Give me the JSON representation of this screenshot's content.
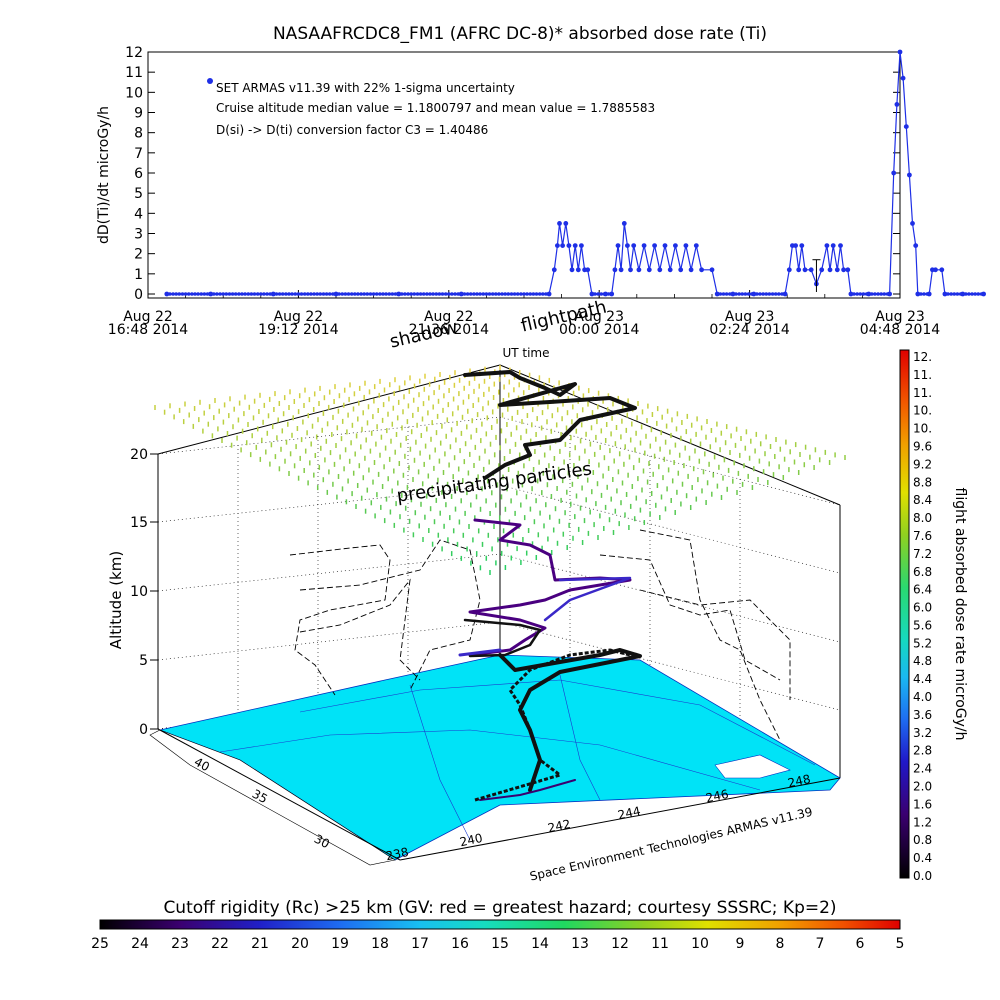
{
  "top_chart": {
    "title": "NASAAFRCDC8_FM1 (AFRC DC-8)* absorbed dose rate (Ti)",
    "ylabel": "dD(Ti)/dt microGy/h",
    "xlabel": "UT time",
    "notes": [
      "SET ARMAS v11.39 with 22% 1-sigma uncertainty",
      "Cruise altitude median value = 1.1800797 and mean value = 1.7885583",
      "D(si) -> D(ti) conversion factor C3 = 1.40486"
    ],
    "x_ticks": [
      {
        "l1": "Aug 22",
        "l2": "16:48 2014"
      },
      {
        "l1": "Aug 22",
        "l2": "19:12 2014"
      },
      {
        "l1": "Aug 22",
        "l2": "21:36 2014"
      },
      {
        "l1": "Aug 23",
        "l2": "00:00 2014"
      },
      {
        "l1": "Aug 23",
        "l2": "02:24 2014"
      },
      {
        "l1": "Aug 23",
        "l2": "04:48 2014"
      }
    ],
    "y_ticks": [
      "0",
      "1",
      "2",
      "3",
      "4",
      "5",
      "6",
      "7",
      "8",
      "9",
      "10",
      "11",
      "12"
    ],
    "point_color": "#1e2fe6"
  },
  "chart_data": {
    "type": "line",
    "title": "NASAAFRCDC8_FM1 (AFRC DC-8)* absorbed dose rate (Ti)",
    "xlabel": "UT time",
    "ylabel": "dD(Ti)/dt microGy/h",
    "xlim": [
      "Aug 22 16:48 2014",
      "Aug 23 04:48 2014"
    ],
    "ylim": [
      0,
      12
    ],
    "x_units": "minutes after Aug 22 16:48 2014",
    "series": [
      {
        "name": "SET ARMAS v11.39 with 22% 1-sigma uncertainty",
        "points": [
          [
            18,
            0
          ],
          [
            60,
            0
          ],
          [
            120,
            0
          ],
          [
            180,
            0
          ],
          [
            240,
            0
          ],
          [
            300,
            0
          ],
          [
            384,
            0
          ],
          [
            389,
            1.2
          ],
          [
            392,
            2.4
          ],
          [
            394,
            3.5
          ],
          [
            397,
            2.4
          ],
          [
            400,
            3.5
          ],
          [
            403,
            2.4
          ],
          [
            406,
            1.2
          ],
          [
            409,
            2.4
          ],
          [
            412,
            1.2
          ],
          [
            415,
            2.4
          ],
          [
            418,
            1.2
          ],
          [
            421,
            1.2
          ],
          [
            425,
            0
          ],
          [
            438,
            0
          ],
          [
            444,
            0
          ],
          [
            447,
            1.2
          ],
          [
            450,
            2.4
          ],
          [
            453,
            1.2
          ],
          [
            456,
            3.5
          ],
          [
            459,
            2.4
          ],
          [
            462,
            1.2
          ],
          [
            465,
            2.4
          ],
          [
            470,
            1.2
          ],
          [
            475,
            2.4
          ],
          [
            480,
            1.2
          ],
          [
            485,
            2.4
          ],
          [
            490,
            1.2
          ],
          [
            495,
            2.4
          ],
          [
            500,
            1.2
          ],
          [
            505,
            2.4
          ],
          [
            510,
            1.2
          ],
          [
            515,
            2.4
          ],
          [
            520,
            1.2
          ],
          [
            525,
            2.4
          ],
          [
            530,
            1.2
          ],
          [
            540,
            1.2
          ],
          [
            545,
            0
          ],
          [
            560,
            0
          ],
          [
            580,
            0
          ],
          [
            610,
            0
          ],
          [
            614,
            1.2
          ],
          [
            617,
            2.4
          ],
          [
            620,
            2.4
          ],
          [
            623,
            1.2
          ],
          [
            626,
            2.4
          ],
          [
            629,
            1.2
          ],
          [
            635,
            1.2
          ],
          [
            640,
            0.5
          ],
          [
            645,
            1.2
          ],
          [
            650,
            2.4
          ],
          [
            653,
            1.2
          ],
          [
            656,
            2.4
          ],
          [
            660,
            1.2
          ],
          [
            663,
            2.4
          ],
          [
            666,
            1.2
          ],
          [
            670,
            1.2
          ],
          [
            673,
            0
          ],
          [
            690,
            0
          ],
          [
            710,
            0
          ],
          [
            714,
            6.0
          ],
          [
            717,
            9.4
          ],
          [
            720,
            12.0
          ],
          [
            723,
            10.7
          ],
          [
            726,
            8.3
          ],
          [
            729,
            5.9
          ],
          [
            732,
            3.5
          ],
          [
            735,
            2.4
          ],
          [
            737,
            0
          ],
          [
            748,
            0
          ],
          [
            751,
            1.2
          ],
          [
            754,
            1.2
          ],
          [
            760,
            1.2
          ],
          [
            763,
            0
          ],
          [
            780,
            0
          ],
          [
            800,
            0
          ]
        ]
      }
    ]
  },
  "lower_chart": {
    "ylabel": "Altitude (km)",
    "z_ticks": [
      "0",
      "5",
      "10",
      "15",
      "20"
    ],
    "lat_ticks": [
      "40",
      "35",
      "30"
    ],
    "lon_ticks": [
      "238",
      "240",
      "242",
      "244",
      "246",
      "248"
    ],
    "label_flightpath": "flightpath",
    "label_shadow": "shadow",
    "label_particles": "precipitating particles",
    "credit": "Space Environment Technologies ARMAS v11.39",
    "land_color": "#00e3f7",
    "path_color": "#111111"
  },
  "dose_colorbar": {
    "label": "flight absorbed dose rate microGy/h",
    "ticks": [
      "12.",
      "11.",
      "11.",
      "10.",
      "10.",
      "9.6",
      "9.2",
      "8.8",
      "8.4",
      "8.0",
      "7.6",
      "7.2",
      "6.8",
      "6.4",
      "6.0",
      "5.6",
      "5.2",
      "4.8",
      "4.4",
      "4.0",
      "3.6",
      "3.2",
      "2.8",
      "2.4",
      "2.0",
      "1.6",
      "1.2",
      "0.8",
      "0.4",
      "0.0"
    ]
  },
  "rigidity_colorbar": {
    "title": "Cutoff rigidity (Rc) >25 km (GV: red = greatest hazard; courtesy SSSRC; Kp=2)",
    "ticks": [
      "25",
      "24",
      "23",
      "22",
      "21",
      "20",
      "19",
      "18",
      "17",
      "16",
      "15",
      "14",
      "13",
      "12",
      "11",
      "10",
      "9",
      "8",
      "7",
      "6",
      "5"
    ]
  }
}
